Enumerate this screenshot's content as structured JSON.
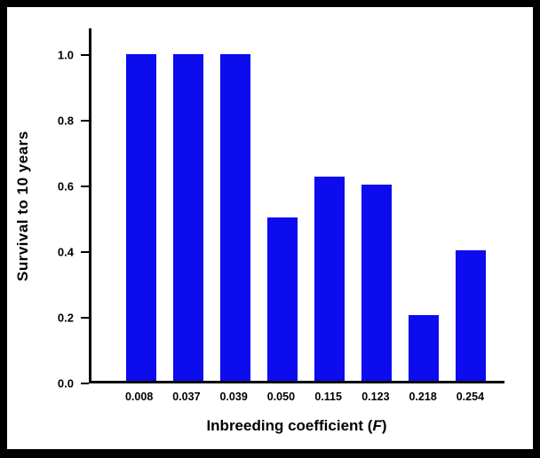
{
  "chart_data": {
    "type": "bar",
    "title": "",
    "categories": [
      "0.008",
      "0.037",
      "0.039",
      "0.050",
      "0.115",
      "0.123",
      "0.218",
      "0.254"
    ],
    "values": [
      1.0,
      1.0,
      1.0,
      0.5,
      0.625,
      0.6,
      0.2,
      0.4
    ],
    "xlabel_prefix": "Inbreeding coefficient (",
    "xlabel_italic": "F",
    "xlabel_suffix": ")",
    "ylabel": "Survival to 10 years",
    "yticks": [
      "0.0",
      "0.2",
      "0.4",
      "0.6",
      "0.8",
      "1.0"
    ],
    "ylim": [
      0,
      1.08
    ],
    "grid": false,
    "legend": false,
    "bar_color": "#0c0cee",
    "axis_color": "#000000",
    "frame_color": "#000000",
    "background_color": "#ffffff"
  }
}
